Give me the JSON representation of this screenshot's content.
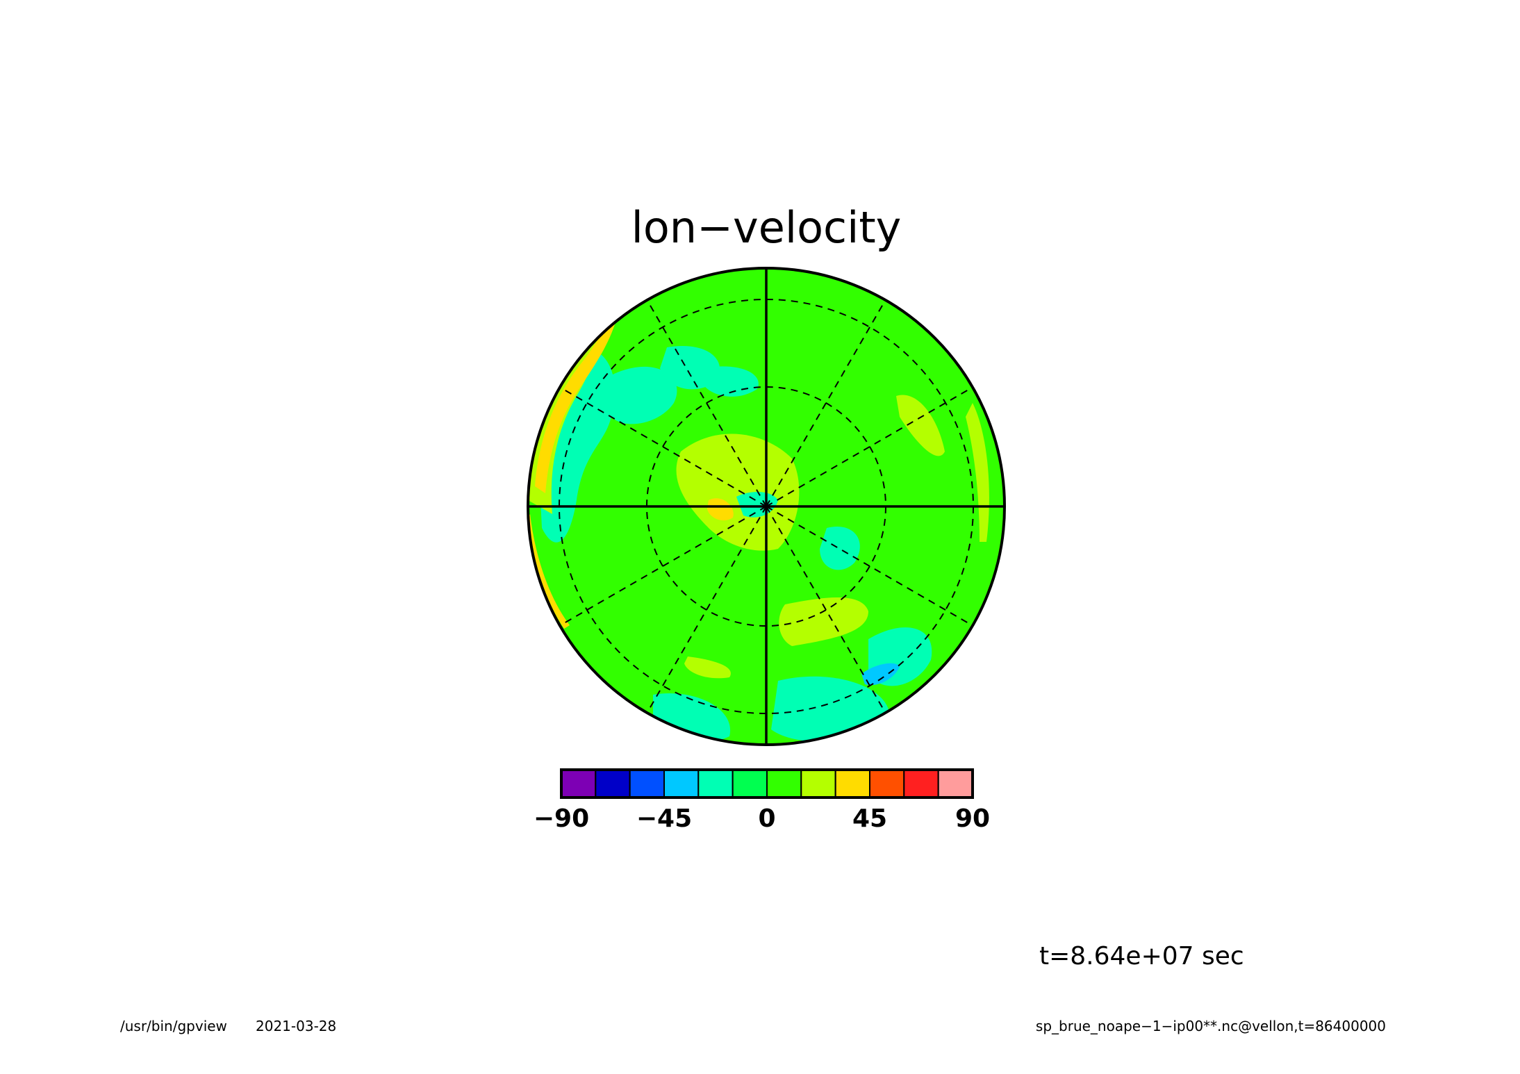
{
  "chart_data": {
    "type": "heatmap",
    "projection": "polar-stereographic",
    "title": "lon−velocity",
    "variable": "vellon",
    "colorbar": {
      "levels": [
        -90,
        -75,
        -60,
        -45,
        -30,
        -15,
        0,
        15,
        30,
        45,
        60,
        75,
        90
      ],
      "colors": [
        "#7d00b4",
        "#0000c8",
        "#0050ff",
        "#00c8ff",
        "#00ffb4",
        "#00ff50",
        "#32ff00",
        "#b4ff00",
        "#ffdc00",
        "#ff5000",
        "#ff2020",
        "#ff9c9c"
      ],
      "tick_labels": [
        "−90",
        "−45",
        "0",
        "45",
        "90"
      ],
      "tick_values": [
        -90,
        -45,
        0,
        45,
        90
      ]
    },
    "graticule": {
      "meridian_spacing_deg": 30,
      "latitude_circles": 3,
      "style": "dashed",
      "axes_solid": true
    },
    "field_regions": [
      {
        "value": 5,
        "desc": "background"
      },
      {
        "value": 20,
        "desc": "yellow-green"
      },
      {
        "value": -20,
        "desc": "cyan"
      },
      {
        "value": 40,
        "desc": "yellow-orange"
      },
      {
        "value": -40,
        "desc": "blue"
      }
    ]
  },
  "time_label": "t=8.64e+07 sec",
  "footer": {
    "program": "/usr/bin/gpview",
    "date": "2021-03-28",
    "source": "sp_brue_noape−1−ip00**.nc@vellon,t=86400000"
  }
}
